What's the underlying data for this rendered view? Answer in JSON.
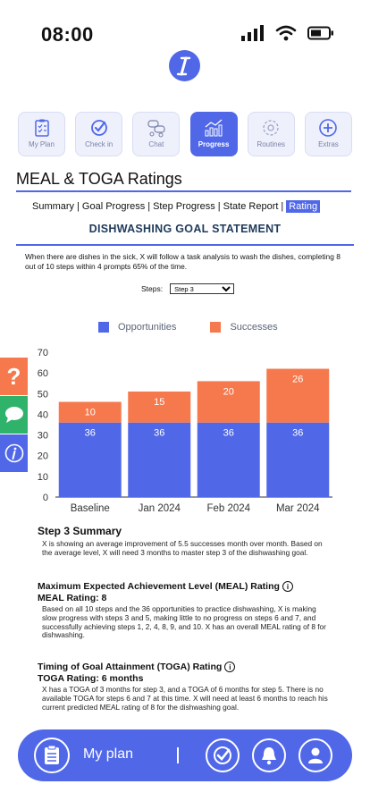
{
  "status_bar": {
    "time": "08:00"
  },
  "tabs": [
    {
      "label": "My Plan",
      "icon": "clipboard-icon",
      "active": false
    },
    {
      "label": "Check in",
      "icon": "checkmark-icon",
      "active": false
    },
    {
      "label": "Chat",
      "icon": "chat-icon",
      "active": false
    },
    {
      "label": "Progress",
      "icon": "bar-chart-icon",
      "active": true
    },
    {
      "label": "Routines",
      "icon": "routine-icon",
      "active": false
    },
    {
      "label": "Extras",
      "icon": "plus-icon",
      "active": false
    }
  ],
  "page": {
    "title": "MEAL & TOGA Ratings"
  },
  "subnav": {
    "items": [
      "Summary",
      "Goal Progress",
      "Step Progress",
      "State Report",
      "Rating"
    ],
    "active_index": 4
  },
  "goal": {
    "title": "DISHWASHING GOAL STATEMENT",
    "statement": "When there are dishes in the sick, X will follow a task analysis to wash the dishes, completing 8 out of 10 steps within 4 prompts 65% of the time."
  },
  "steps_select": {
    "label": "Steps:",
    "value": "Step 3"
  },
  "chart_data": {
    "type": "bar",
    "stacked": true,
    "categories": [
      "Baseline",
      "Jan 2024",
      "Feb 2024",
      "Mar 2024"
    ],
    "series": [
      {
        "name": "Opportunities",
        "values": [
          36,
          36,
          36,
          36
        ],
        "color": "#5068e8"
      },
      {
        "name": "Successes",
        "values": [
          10,
          15,
          20,
          26
        ],
        "color": "#f5794d"
      }
    ],
    "ylim": [
      0,
      70
    ],
    "yticks": [
      0,
      10,
      20,
      30,
      40,
      50,
      60,
      70
    ],
    "legend": "top"
  },
  "summary": {
    "title": "Step 3 Summary",
    "body": "X is showing an average improvement of 5.5 successes month over month. Based on the average level, X will need 3 months to master step 3 of the dishwashing goal."
  },
  "meal": {
    "title": "Maximum Expected Achievement Level (MEAL) Rating",
    "rating": "MEAL Rating: 8",
    "body": "Based on all 10 steps and the 36 opportunities to practice dishwashing, X is making slow progress with steps 3 and 5, making little to no progress on steps 6 and 7, and successfully achieving steps 1, 2, 4, 8, 9, and 10. X has an overall MEAL rating of 8 for dishwashing."
  },
  "toga": {
    "title": "Timing of Goal Attainment (TOGA) Rating",
    "rating": "TOGA Rating: 6 months",
    "body": "X has a TOGA of 3 months for step 3, and a TOGA of 6 months for step 5. There is no available TOGA for steps 6 and 7 at this time. X will need at least 6 months to reach his current predicted MEAL rating of 8 for the dishwashing goal."
  },
  "bottom_nav": {
    "plan_label": "My plan"
  },
  "colors": {
    "accent": "#5068e8",
    "success": "#f5794d",
    "help": "#f5794d",
    "chat": "#2fb36a"
  }
}
